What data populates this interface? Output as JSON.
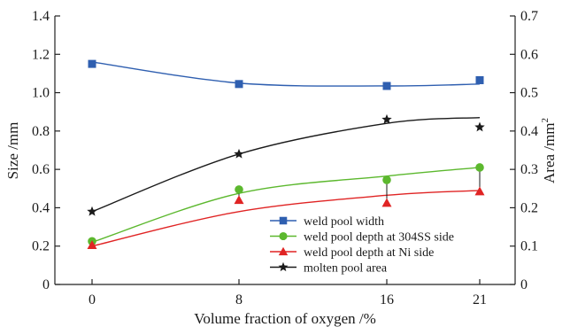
{
  "chart_data": {
    "type": "line",
    "title": "",
    "xlabel": "Volume fraction of oxygen /%",
    "ylabel_left": "Size /mm",
    "ylabel_right": "Area /mm",
    "ylabel_right_superscript": "2",
    "x_ticks": [
      "0",
      "8",
      "16",
      "21"
    ],
    "x": [
      0,
      8,
      16,
      21
    ],
    "ylim_left": [
      0,
      1.4
    ],
    "yticks_left": [
      "0",
      "0.2",
      "0.4",
      "0.6",
      "0.8",
      "1.0",
      "1.2",
      "1.4"
    ],
    "ylim_right": [
      0,
      0.7
    ],
    "yticks_right": [
      "0",
      "0.1",
      "0.2",
      "0.3",
      "0.4",
      "0.5",
      "0.6",
      "0.7"
    ],
    "grid": false,
    "legend_position": "bottom-right",
    "series": [
      {
        "name": "weld pool width",
        "axis": "left",
        "marker": "square",
        "color": "#2f5fb0",
        "values": [
          1.15,
          1.045,
          1.035,
          1.065
        ],
        "fit_curve": [
          1.16,
          1.05,
          1.035,
          1.045
        ]
      },
      {
        "name": "weld pool depth at 304SS side",
        "axis": "left",
        "marker": "circle",
        "color": "#5cb82e",
        "values": [
          0.225,
          0.495,
          0.545,
          0.61
        ],
        "fit_curve": [
          0.22,
          0.475,
          0.565,
          0.61
        ]
      },
      {
        "name": "weld pool depth at Ni side",
        "axis": "left",
        "marker": "triangle",
        "color": "#e02424",
        "values": [
          0.205,
          0.44,
          0.425,
          0.485
        ],
        "fit_curve": [
          0.2,
          0.38,
          0.465,
          0.49
        ]
      },
      {
        "name": "molten pool area",
        "axis": "right",
        "marker": "star",
        "color": "#1a1a1a",
        "values": [
          0.19,
          0.34,
          0.43,
          0.41
        ],
        "fit_curve": [
          0.19,
          0.34,
          0.42,
          0.435
        ]
      }
    ]
  }
}
